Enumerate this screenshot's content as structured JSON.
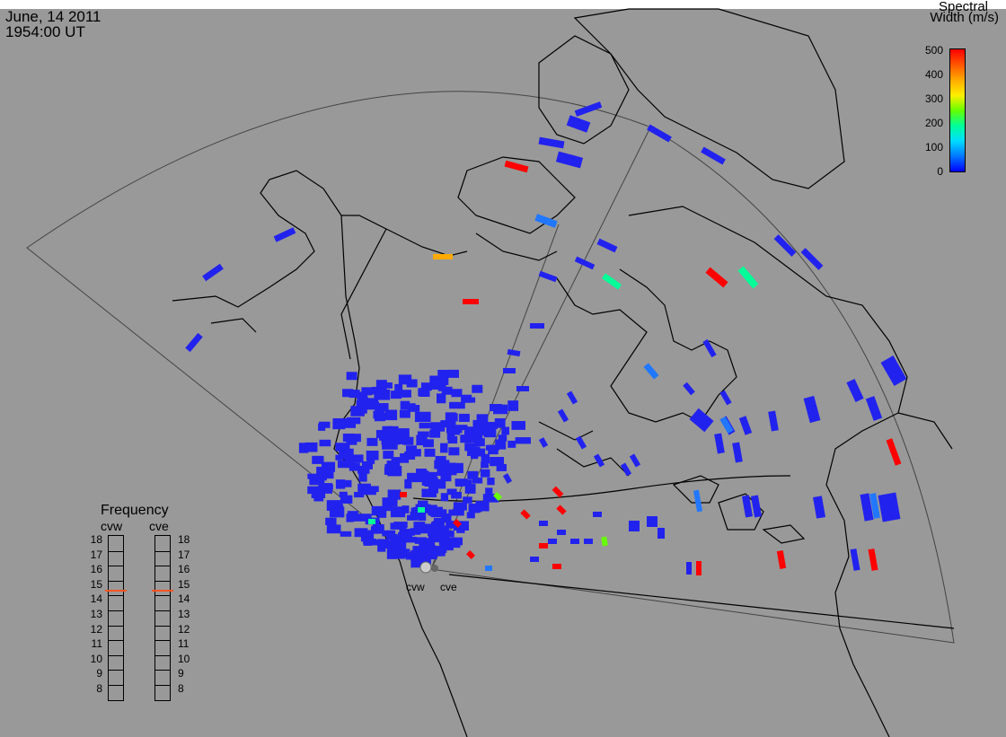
{
  "header": {
    "date": "June, 14 2011",
    "time": "1954:00 UT"
  },
  "colorbar": {
    "title_line1": "Spectral",
    "title_line2": "Width (m/s)",
    "ticks": [
      "500",
      "400",
      "300",
      "200",
      "100",
      "0"
    ],
    "colors": [
      "#0000ff",
      "#0077ff",
      "#00ddff",
      "#00ff99",
      "#66ff00",
      "#ffee00",
      "#ffaa00",
      "#ff5500",
      "#ff0000"
    ]
  },
  "frequency_panel": {
    "title": "Frequency",
    "columns": [
      "cvw",
      "cve"
    ],
    "levels": [
      "18",
      "17",
      "16",
      "15",
      "14",
      "13",
      "12",
      "11",
      "10",
      "9",
      "8"
    ],
    "values_mhz": {
      "cvw": 14.9,
      "cve": 14.9
    },
    "marker_color": "#ff5522"
  },
  "radars": [
    {
      "name": "cvw"
    },
    {
      "name": "cve"
    }
  ],
  "colors": {
    "background": "#999999",
    "coast": "#000000",
    "scatter_default": "#2222ee"
  }
}
